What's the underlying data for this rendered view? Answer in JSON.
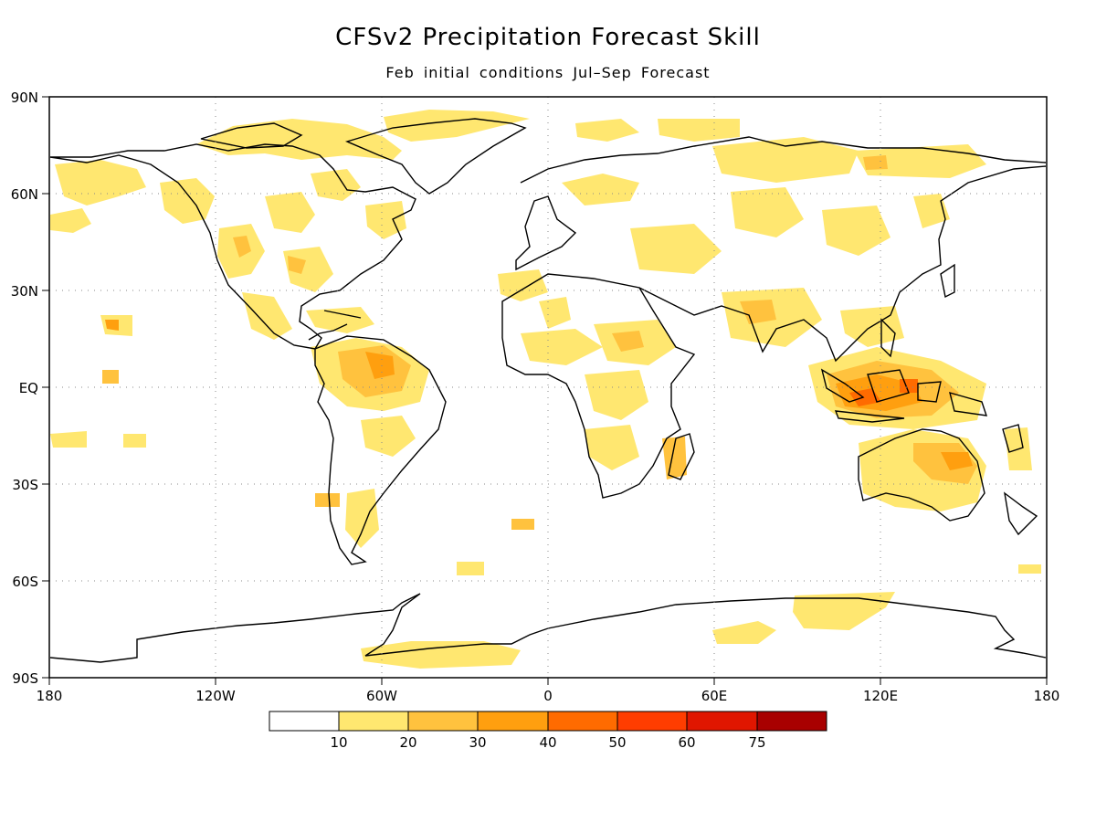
{
  "header": {
    "title": "CFSv2 Precipitation Forecast Skill",
    "subtitle": "Feb initial conditions   Jul–Sep Forecast"
  },
  "map": {
    "projection": "equirectangular",
    "lat_labels": [
      "90N",
      "60N",
      "30N",
      "EQ",
      "30S",
      "60S",
      "90S"
    ],
    "lon_labels": [
      "180",
      "120W",
      "60W",
      "0",
      "60E",
      "120E",
      "180"
    ],
    "grid": "dotted"
  },
  "colorbar": {
    "labels": [
      "10",
      "20",
      "30",
      "40",
      "50",
      "60",
      "75"
    ],
    "colors": [
      "#ffffff",
      "#ffe770",
      "#ffc23e",
      "#ff9f0f",
      "#ff6b00",
      "#ff3d00",
      "#e01600",
      "#a80000"
    ]
  }
}
